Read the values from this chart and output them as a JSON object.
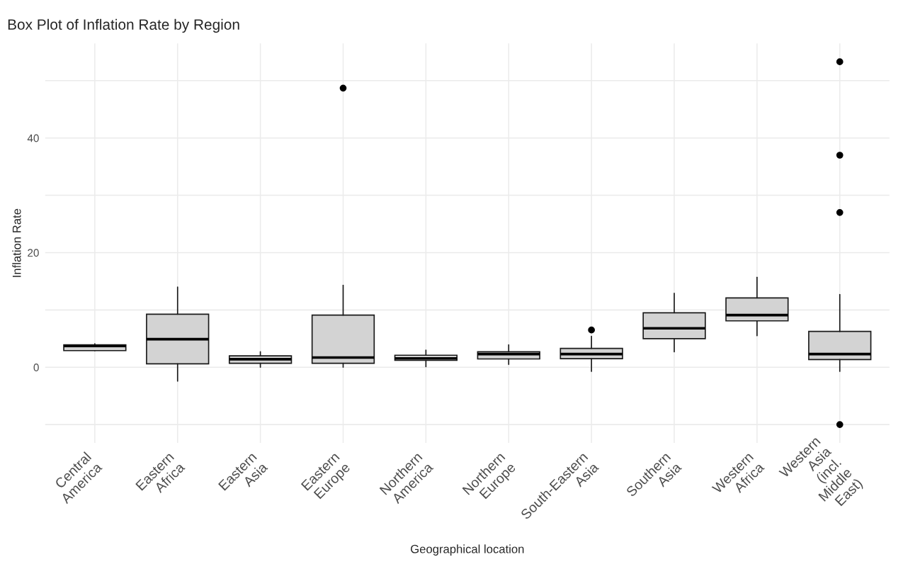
{
  "chart_data": {
    "type": "box",
    "title": "Box Plot of Inflation Rate by Region",
    "xlabel": "Geographical location",
    "ylabel": "Inflation Rate",
    "categories": [
      "Central\nAmerica",
      "Eastern\nAfrica",
      "Eastern\nAsia",
      "Eastern\nEurope",
      "Northern\nAmerica",
      "Northern\nEurope",
      "South-Eastern\nAsia",
      "Southern\nAsia",
      "Western\nAfrica",
      "Western\nAsia\n(incl.\nMiddle\nEast)"
    ],
    "color": "#d3d3d3",
    "boxes": [
      {
        "low": 2.9,
        "q1": 2.9,
        "median": 3.7,
        "q3": 3.9,
        "high": 4.1
      },
      {
        "low": -2.4,
        "q1": 0.6,
        "median": 4.9,
        "q3": 9.25,
        "high": 14.0
      },
      {
        "low": 0.0,
        "q1": 0.7,
        "median": 1.4,
        "q3": 2.0,
        "high": 2.7
      },
      {
        "low": 0.0,
        "q1": 0.7,
        "median": 1.7,
        "q3": 9.1,
        "high": 14.3,
        "outliers": [
          48.7
        ]
      },
      {
        "low": 0.1,
        "q1": 1.2,
        "median": 1.55,
        "q3": 2.1,
        "high": 3.0
      },
      {
        "low": 0.5,
        "q1": 1.45,
        "median": 2.3,
        "q3": 2.7,
        "high": 3.9
      },
      {
        "low": -0.7,
        "q1": 1.5,
        "median": 2.3,
        "q3": 3.3,
        "high": 5.4,
        "outliers": [
          6.5
        ]
      },
      {
        "low": 2.7,
        "q1": 5.0,
        "median": 6.8,
        "q3": 9.5,
        "high": 12.9
      },
      {
        "low": 5.5,
        "q1": 8.1,
        "median": 9.1,
        "q3": 12.1,
        "high": 15.7
      },
      {
        "low": -0.7,
        "q1": 1.35,
        "median": 2.3,
        "q3": 6.25,
        "high": 12.7,
        "outliers": [
          53.3,
          37.0,
          27.0,
          -10.0
        ]
      }
    ],
    "ylim": [
      -13.2,
      56.5
    ],
    "yticks": [
      {
        "value": -10,
        "label": null
      },
      0,
      {
        "value": 10,
        "label": null
      },
      20,
      {
        "value": 30,
        "label": null
      },
      40,
      {
        "value": 50,
        "label": null
      }
    ],
    "grid": true,
    "legend": false
  }
}
